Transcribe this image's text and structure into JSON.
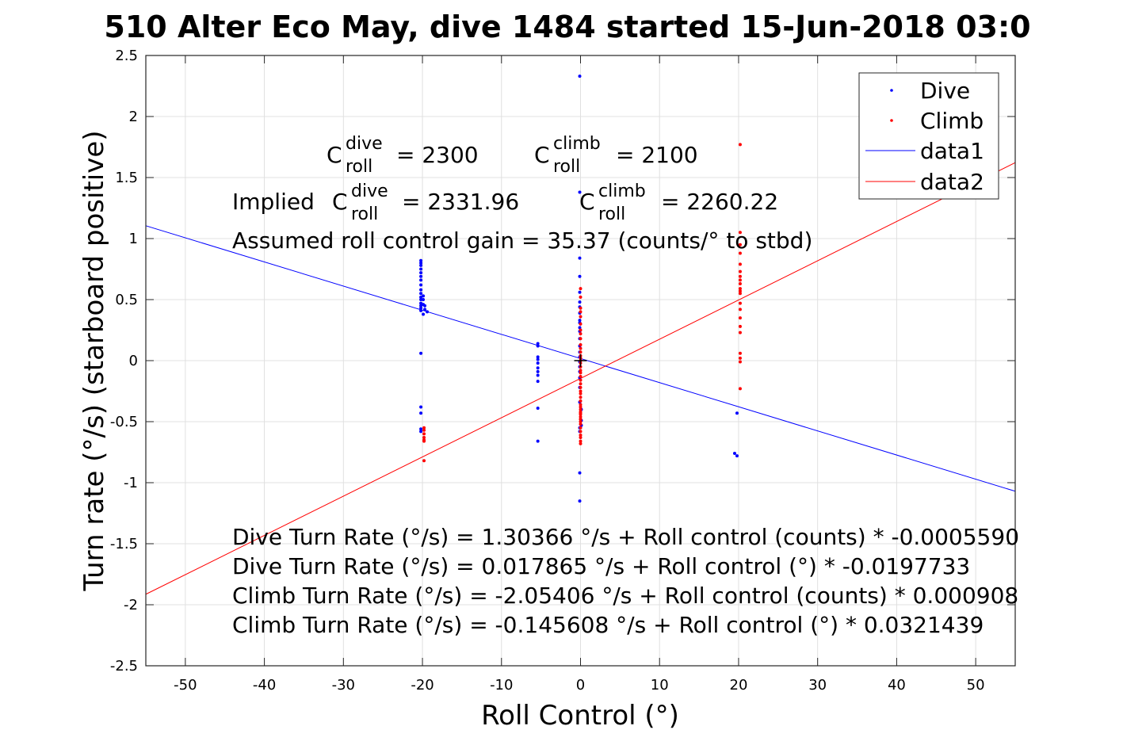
{
  "chart_data": {
    "type": "scatter",
    "title": "510 Alter Eco May, dive 1484 started 15-Jun-2018 03:0",
    "xlabel": "Roll Control (°)",
    "ylabel": "Turn rate (°/s) (starboard positive)",
    "xlim": [
      -55,
      55
    ],
    "ylim": [
      -2.5,
      2.5
    ],
    "grid": true,
    "legend_position": "top-right",
    "x_ticks": [
      -50,
      -40,
      -30,
      -20,
      -10,
      0,
      10,
      20,
      30,
      40,
      50
    ],
    "x_tick_labels": [
      "-50",
      "-40",
      "-30",
      "-20",
      "-10",
      "0",
      "10",
      "20",
      "30",
      "40",
      "50"
    ],
    "y_ticks": [
      -2.5,
      -2,
      -1.5,
      -1,
      -0.5,
      0,
      0.5,
      1,
      1.5,
      2,
      2.5
    ],
    "y_tick_labels": [
      "-2.5",
      "-2",
      "-1.5",
      "-1",
      "-0.5",
      "0",
      "0.5",
      "1",
      "1.5",
      "2",
      "2.5"
    ],
    "series": [
      {
        "name": "Dive",
        "kind": "points",
        "color": "#0000ff",
        "x": [
          -20.2,
          -20.2,
          -20.2,
          -20.2,
          -20.2,
          -20.2,
          -20.2,
          -20.2,
          -20.2,
          -20.2,
          -20.2,
          -20.2,
          -20.2,
          -20.2,
          -20.2,
          -20.2,
          -19.9,
          -19.9,
          -19.9,
          -19.7,
          -19.7,
          -19.4,
          -19.9,
          -20.2,
          -20.2,
          -20.2,
          -20.2,
          -20.2,
          -5.4,
          -5.4,
          -5.4,
          -5.4,
          -5.4,
          -5.4,
          -5.4,
          -5.4,
          -5.4,
          -5.4,
          -5.4,
          -0.1,
          -0.1,
          -0.1,
          -0.1,
          -0.1,
          -0.1,
          -0.1,
          -0.1,
          -0.1,
          -0.1,
          -0.1,
          -0.1,
          -0.1,
          -0.1,
          -0.1,
          -0.1,
          -0.1,
          -0.1,
          -0.1,
          -0.1,
          -0.1,
          -0.1,
          0.1,
          0.1,
          0.1,
          -0.1,
          -0.1,
          -0.1,
          -0.1,
          19.5,
          19.8,
          19.8
        ],
        "y": [
          0.82,
          0.8,
          0.78,
          0.75,
          0.72,
          0.69,
          0.66,
          0.62,
          0.58,
          0.55,
          0.52,
          0.5,
          0.47,
          0.45,
          0.43,
          0.41,
          0.5,
          0.53,
          0.46,
          0.45,
          0.42,
          0.4,
          0.38,
          0.06,
          -0.38,
          -0.43,
          -0.56,
          -0.58,
          0.14,
          0.12,
          0.03,
          0.01,
          -0.02,
          -0.06,
          -0.09,
          -0.12,
          -0.17,
          -0.39,
          -0.66,
          2.33,
          1.38,
          0.84,
          0.69,
          0.56,
          0.48,
          0.44,
          0.39,
          0.33,
          0.31,
          0.27,
          0.24,
          0.18,
          0.12,
          0.07,
          0.03,
          -0.01,
          -0.05,
          -0.09,
          -0.14,
          -0.22,
          -0.34,
          -0.4,
          -0.49,
          -0.53,
          -0.55,
          -0.58,
          -0.92,
          -1.15,
          -0.76,
          -0.78,
          -0.43
        ]
      },
      {
        "name": "Climb",
        "kind": "points",
        "color": "#ff0000",
        "x": [
          -19.8,
          -19.8,
          -19.8,
          -19.8,
          -19.8,
          -19.8,
          -19.8,
          0.0,
          0.0,
          0.0,
          0.0,
          0.0,
          0.0,
          0.0,
          0.0,
          0.0,
          0.0,
          0.0,
          0.0,
          0.0,
          0.0,
          0.0,
          0.0,
          0.0,
          0.0,
          0.0,
          0.0,
          0.0,
          0.0,
          0.0,
          0.0,
          0.0,
          0.0,
          0.0,
          0.0,
          0.0,
          0.0,
          0.0,
          0.0,
          0.0,
          0.0,
          0.0,
          0.0,
          0.0,
          0.0,
          0.0,
          0.0,
          0.0,
          0.0,
          0.0,
          0.0,
          20.2,
          20.2,
          20.2,
          20.2,
          20.2,
          20.2,
          20.2,
          20.2,
          20.2,
          20.2,
          20.2,
          20.2,
          20.2,
          20.2,
          20.2,
          20.2,
          20.2,
          20.2,
          20.2,
          20.2,
          20.2
        ],
        "y": [
          -0.55,
          -0.57,
          -0.6,
          -0.63,
          -0.65,
          -0.66,
          -0.82,
          0.59,
          0.52,
          0.43,
          0.4,
          0.36,
          0.3,
          0.25,
          0.22,
          0.18,
          0.13,
          0.1,
          0.07,
          0.04,
          0.02,
          0.0,
          -0.02,
          -0.05,
          -0.08,
          -0.1,
          -0.13,
          -0.16,
          -0.19,
          -0.22,
          -0.25,
          -0.27,
          -0.3,
          -0.33,
          -0.36,
          -0.38,
          -0.4,
          -0.42,
          -0.44,
          -0.46,
          -0.48,
          -0.5,
          -0.52,
          -0.55,
          -0.58,
          -0.61,
          -0.63,
          -0.66,
          -0.68,
          -0.43,
          -0.48,
          1.77,
          1.05,
          0.95,
          0.88,
          0.79,
          0.73,
          0.69,
          0.66,
          0.63,
          0.59,
          0.57,
          0.55,
          0.47,
          0.42,
          0.35,
          0.28,
          0.23,
          0.06,
          0.02,
          -0.01,
          -0.23
        ]
      },
      {
        "name": "data1",
        "kind": "line",
        "color": "#0000ff",
        "x": [
          -55,
          55
        ],
        "y": [
          1.105,
          -1.07
        ]
      },
      {
        "name": "data2",
        "kind": "line",
        "color": "#ff0000",
        "x": [
          -55,
          55
        ],
        "y": [
          -1.914,
          1.622
        ]
      }
    ],
    "annotations": {
      "c_dive": {
        "base": "C",
        "sup": "dive",
        "sub": "roll",
        "rhs": "= 2300"
      },
      "c_climb": {
        "base": "C",
        "sup": "climb",
        "sub": "roll",
        "rhs": "= 2100"
      },
      "implied_dive": {
        "prefix": "Implied ",
        "base": "C",
        "sup": "dive",
        "sub": "roll",
        "rhs": "= 2331.96"
      },
      "implied_climb": {
        "base": "C",
        "sup": "climb",
        "sub": "roll",
        "rhs": "= 2260.22"
      },
      "gain": "Assumed roll control gain = 35.37 (counts/° to stbd)",
      "fits": [
        "Dive Turn Rate (°/s) = 1.30366 °/s + Roll control (counts) * -0.0005590",
        "Dive Turn Rate (°/s) = 0.017865 °/s + Roll control (°) * -0.0197733",
        "Climb Turn Rate (°/s) = -2.05406 °/s + Roll control (counts) * 0.000908",
        "Climb Turn Rate (°/s) = -0.145608 °/s + Roll control (°) * 0.0321439"
      ]
    }
  }
}
